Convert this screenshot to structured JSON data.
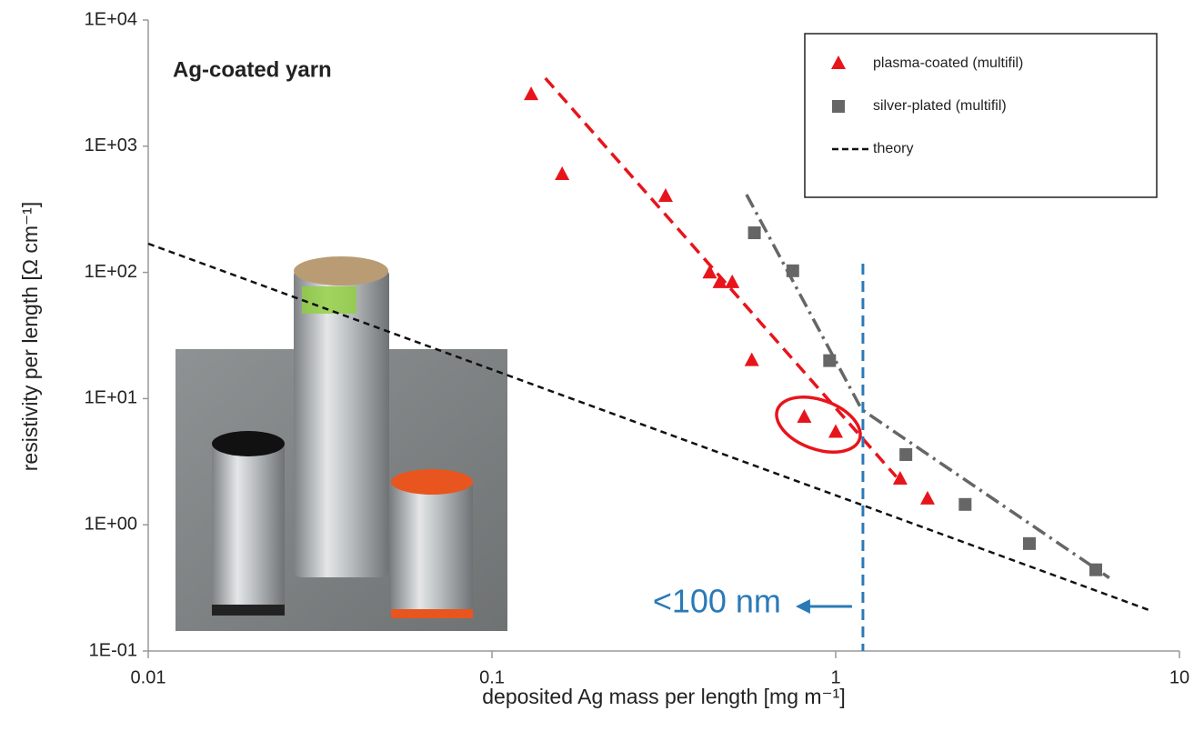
{
  "chart_data": {
    "type": "scatter",
    "title": "Ag-coated yarn",
    "x_label": "deposited Ag mass per length [mg m⁻¹]",
    "y_label": "resistivity per length [Ω cm⁻¹]",
    "x_scale": "log",
    "y_scale": "log",
    "xlim": [
      0.01,
      10
    ],
    "ylim": [
      0.1,
      10000
    ],
    "xticks": [
      0.01,
      0.1,
      1,
      10
    ],
    "yticks": [
      {
        "value": 0.1,
        "label": "1E-01"
      },
      {
        "value": 1,
        "label": "1E+00"
      },
      {
        "value": 10,
        "label": "1E+01"
      },
      {
        "value": 100,
        "label": "1E+02"
      },
      {
        "value": 1000,
        "label": "1E+03"
      },
      {
        "value": 10000,
        "label": "1E+04"
      }
    ],
    "grid": false,
    "legend": "top-right",
    "series": [
      {
        "name": "plasma-coated (multifil)",
        "color": "#e8141b",
        "marker": "triangle",
        "x": [
          0.13,
          0.16,
          0.32,
          0.43,
          0.46,
          0.5,
          0.57,
          0.81,
          1.0,
          1.54,
          1.85
        ],
        "values": [
          2560,
          596,
          400,
          99,
          83,
          83,
          20,
          7.1,
          5.4,
          2.3,
          1.6
        ]
      },
      {
        "name": "silver-plated (multifil)",
        "color": "#666666",
        "marker": "square",
        "x": [
          0.58,
          0.75,
          0.96,
          1.6,
          2.38,
          3.66,
          5.71
        ],
        "values": [
          206,
          103,
          20,
          3.6,
          1.45,
          0.71,
          0.44
        ]
      },
      {
        "name": "theory",
        "color": "#111111",
        "marker": "dashed-line",
        "x": [
          0.01,
          8.2
        ],
        "values": [
          169,
          0.21
        ]
      }
    ],
    "fits": [
      {
        "color": "#e8141b",
        "style": "dashed",
        "x": [
          0.143,
          1.5
        ],
        "values": [
          3460,
          2.4
        ]
      },
      {
        "color": "#666666",
        "style": "dashdot",
        "x": [
          0.55,
          1.19,
          6.25
        ],
        "values": [
          414,
          8.2,
          0.38
        ]
      }
    ],
    "threshold": {
      "x": 1.2,
      "color": "#2a7ab8",
      "label": "<100 nm"
    }
  }
}
